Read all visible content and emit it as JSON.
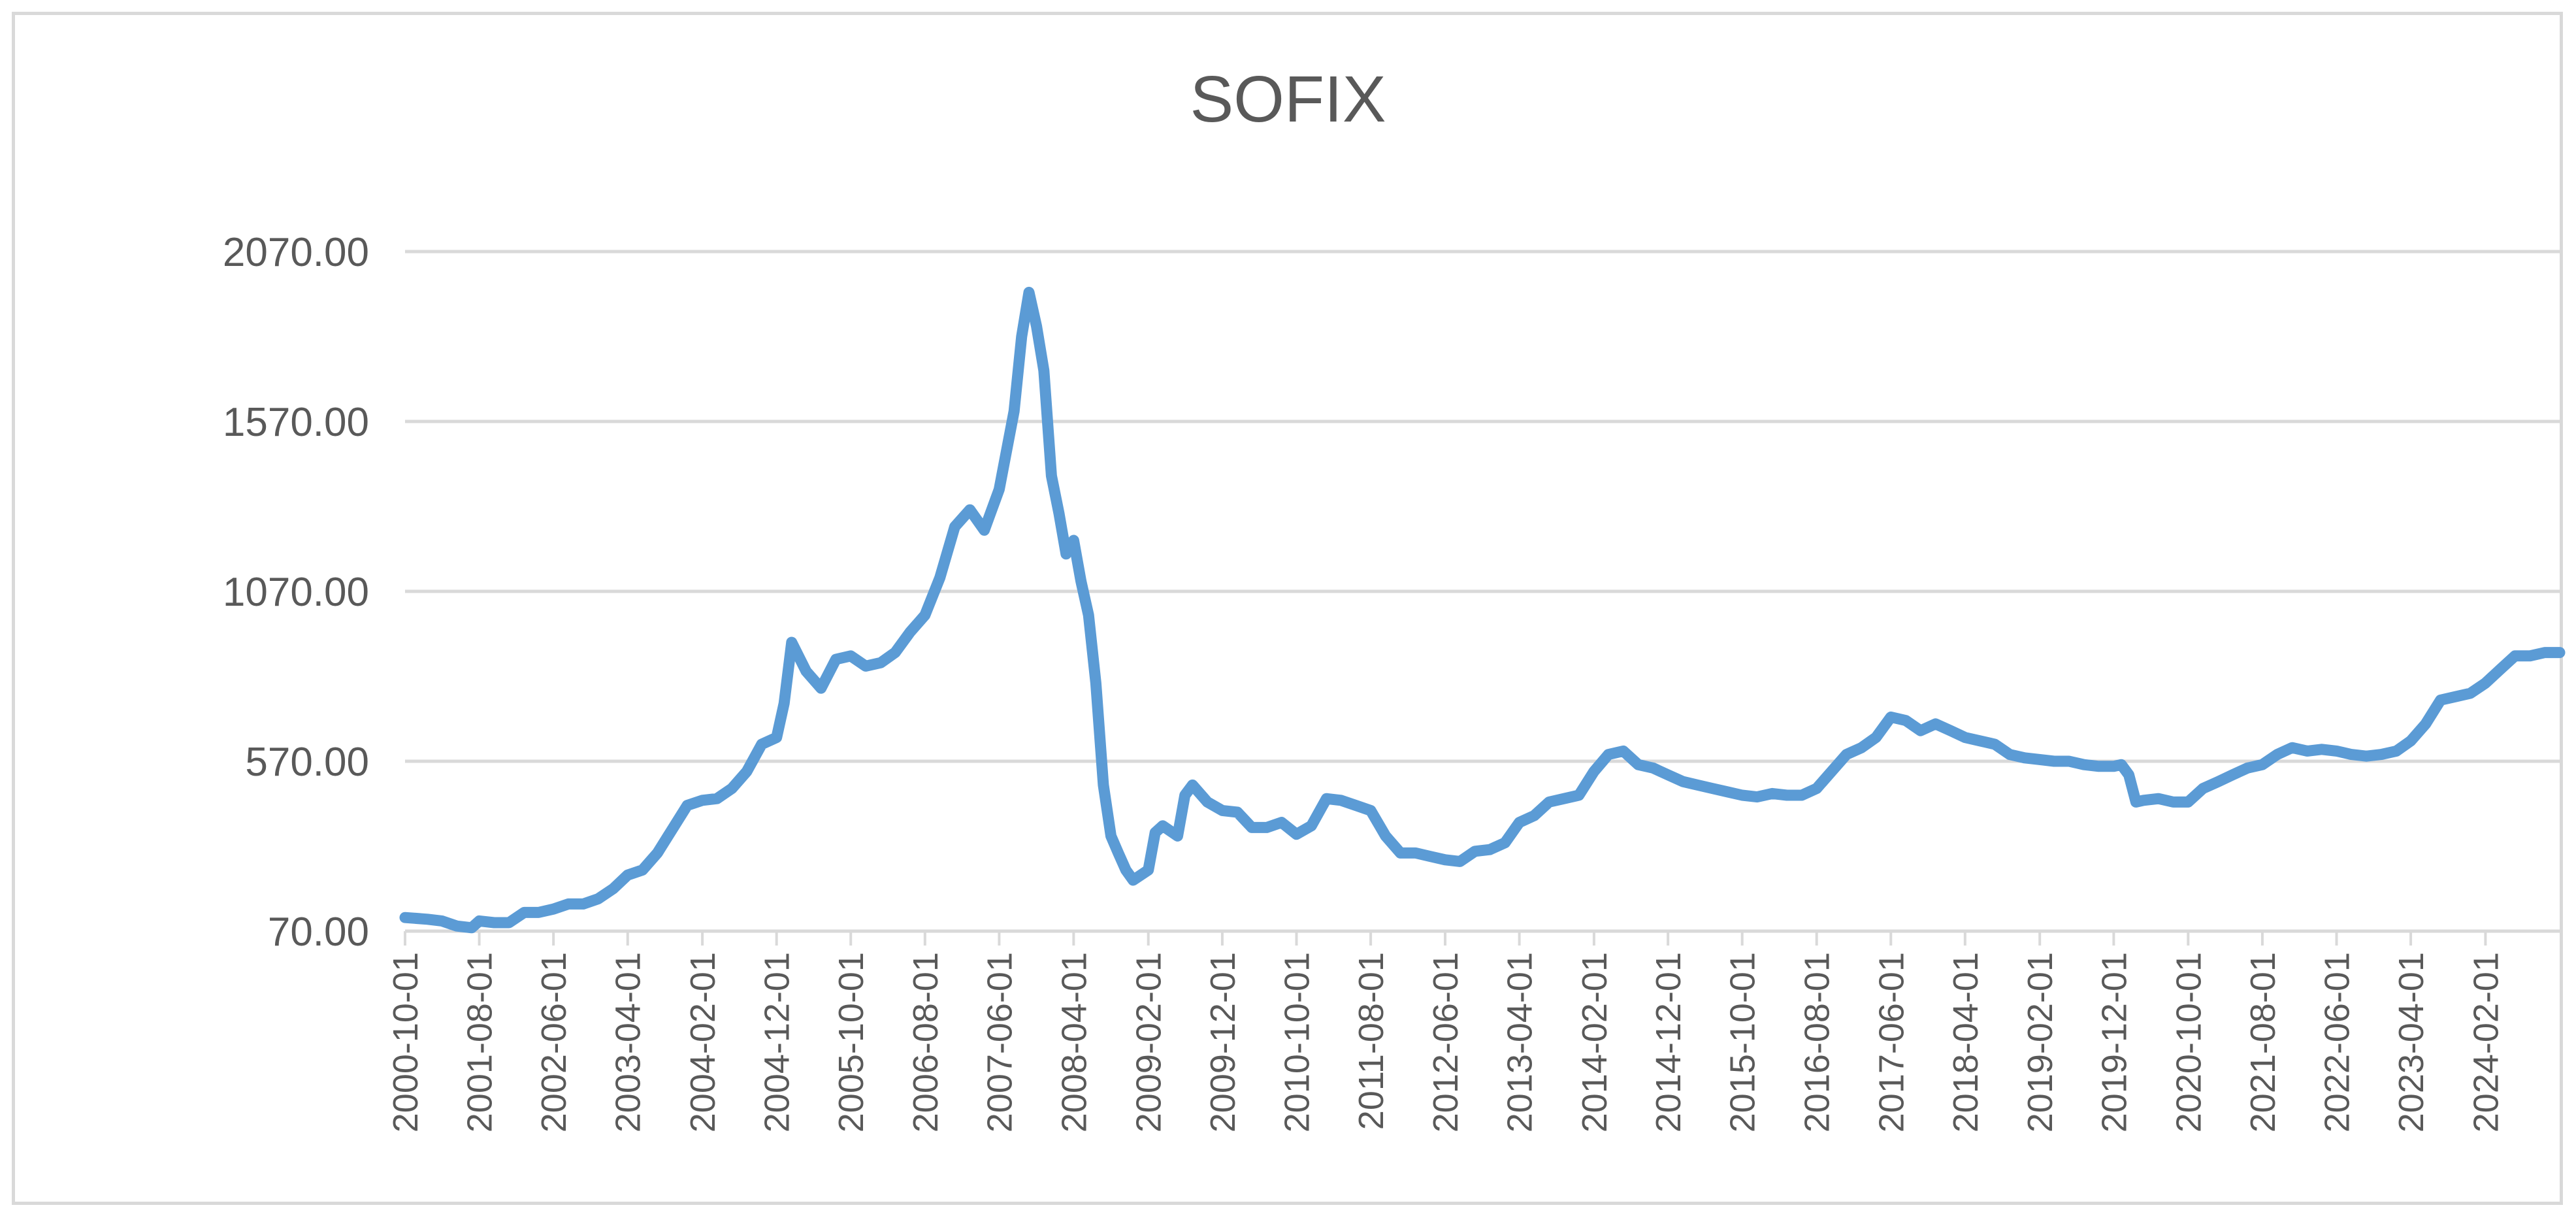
{
  "chart_data": {
    "type": "line",
    "title": "SOFIX",
    "xlabel": "",
    "ylabel": "",
    "ylim": [
      70,
      2070
    ],
    "yticks": [
      "70.00",
      "570.00",
      "1070.00",
      "1570.00",
      "2070.00"
    ],
    "xlim": [
      "2000-10-01",
      "2024-12-01"
    ],
    "xticks": [
      "2000-10-01",
      "2001-08-01",
      "2002-06-01",
      "2003-04-01",
      "2004-02-01",
      "2004-12-01",
      "2005-10-01",
      "2006-08-01",
      "2007-06-01",
      "2008-04-01",
      "2009-02-01",
      "2009-12-01",
      "2010-10-01",
      "2011-08-01",
      "2012-06-01",
      "2013-04-01",
      "2014-02-01",
      "2014-12-01",
      "2015-10-01",
      "2016-08-01",
      "2017-06-01",
      "2018-04-01",
      "2019-02-01",
      "2019-12-01",
      "2020-10-01",
      "2021-08-01",
      "2022-06-01",
      "2023-04-01",
      "2024-02-01"
    ],
    "grid": true,
    "legend": "none",
    "color": "#5b9bd5",
    "series": [
      {
        "points": [
          [
            "2000-10-01",
            110
          ],
          [
            "2001-01-01",
            105
          ],
          [
            "2001-03-01",
            100
          ],
          [
            "2001-05-01",
            85
          ],
          [
            "2001-07-01",
            80
          ],
          [
            "2001-08-01",
            100
          ],
          [
            "2001-10-01",
            95
          ],
          [
            "2001-12-01",
            95
          ],
          [
            "2002-02-01",
            125
          ],
          [
            "2002-04-01",
            125
          ],
          [
            "2002-06-01",
            135
          ],
          [
            "2002-08-01",
            150
          ],
          [
            "2002-10-01",
            150
          ],
          [
            "2002-12-01",
            165
          ],
          [
            "2003-02-01",
            195
          ],
          [
            "2003-04-01",
            235
          ],
          [
            "2003-06-01",
            250
          ],
          [
            "2003-08-01",
            300
          ],
          [
            "2003-10-01",
            370
          ],
          [
            "2003-12-01",
            440
          ],
          [
            "2004-02-01",
            455
          ],
          [
            "2004-04-01",
            460
          ],
          [
            "2004-06-01",
            490
          ],
          [
            "2004-08-01",
            540
          ],
          [
            "2004-10-01",
            620
          ],
          [
            "2004-12-01",
            640
          ],
          [
            "2005-01-01",
            740
          ],
          [
            "2005-02-01",
            920
          ],
          [
            "2005-04-01",
            835
          ],
          [
            "2005-06-01",
            785
          ],
          [
            "2005-08-01",
            870
          ],
          [
            "2005-10-01",
            880
          ],
          [
            "2005-12-01",
            850
          ],
          [
            "2006-02-01",
            860
          ],
          [
            "2006-04-01",
            890
          ],
          [
            "2006-06-01",
            950
          ],
          [
            "2006-08-01",
            1000
          ],
          [
            "2006-10-01",
            1110
          ],
          [
            "2006-12-01",
            1260
          ],
          [
            "2007-02-01",
            1310
          ],
          [
            "2007-04-01",
            1250
          ],
          [
            "2007-06-01",
            1370
          ],
          [
            "2007-08-01",
            1600
          ],
          [
            "2007-09-01",
            1820
          ],
          [
            "2007-10-01",
            1950
          ],
          [
            "2007-11-01",
            1850
          ],
          [
            "2007-12-01",
            1720
          ],
          [
            "2008-01-01",
            1410
          ],
          [
            "2008-02-01",
            1300
          ],
          [
            "2008-03-01",
            1180
          ],
          [
            "2008-04-01",
            1220
          ],
          [
            "2008-05-01",
            1100
          ],
          [
            "2008-06-01",
            1000
          ],
          [
            "2008-07-01",
            800
          ],
          [
            "2008-08-01",
            500
          ],
          [
            "2008-09-01",
            350
          ],
          [
            "2008-10-01",
            300
          ],
          [
            "2008-11-01",
            250
          ],
          [
            "2008-12-01",
            220
          ],
          [
            "2009-02-01",
            250
          ],
          [
            "2009-03-01",
            360
          ],
          [
            "2009-04-01",
            380
          ],
          [
            "2009-06-01",
            350
          ],
          [
            "2009-07-01",
            470
          ],
          [
            "2009-08-01",
            500
          ],
          [
            "2009-10-01",
            450
          ],
          [
            "2009-12-01",
            425
          ],
          [
            "2010-02-01",
            420
          ],
          [
            "2010-04-01",
            375
          ],
          [
            "2010-06-01",
            375
          ],
          [
            "2010-08-01",
            390
          ],
          [
            "2010-10-01",
            355
          ],
          [
            "2010-12-01",
            380
          ],
          [
            "2011-02-01",
            460
          ],
          [
            "2011-04-01",
            455
          ],
          [
            "2011-06-01",
            440
          ],
          [
            "2011-08-01",
            425
          ],
          [
            "2011-10-01",
            350
          ],
          [
            "2011-12-01",
            300
          ],
          [
            "2012-02-01",
            300
          ],
          [
            "2012-04-01",
            290
          ],
          [
            "2012-06-01",
            280
          ],
          [
            "2012-08-01",
            275
          ],
          [
            "2012-10-01",
            305
          ],
          [
            "2012-12-01",
            310
          ],
          [
            "2013-02-01",
            330
          ],
          [
            "2013-04-01",
            390
          ],
          [
            "2013-06-01",
            410
          ],
          [
            "2013-08-01",
            450
          ],
          [
            "2013-10-01",
            460
          ],
          [
            "2013-12-01",
            470
          ],
          [
            "2014-02-01",
            540
          ],
          [
            "2014-04-01",
            590
          ],
          [
            "2014-06-01",
            600
          ],
          [
            "2014-08-01",
            560
          ],
          [
            "2014-10-01",
            550
          ],
          [
            "2014-12-01",
            530
          ],
          [
            "2015-02-01",
            510
          ],
          [
            "2015-04-01",
            500
          ],
          [
            "2015-06-01",
            490
          ],
          [
            "2015-08-01",
            480
          ],
          [
            "2015-10-01",
            470
          ],
          [
            "2015-12-01",
            465
          ],
          [
            "2016-02-01",
            475
          ],
          [
            "2016-04-01",
            470
          ],
          [
            "2016-06-01",
            470
          ],
          [
            "2016-08-01",
            490
          ],
          [
            "2016-10-01",
            540
          ],
          [
            "2016-12-01",
            590
          ],
          [
            "2017-02-01",
            610
          ],
          [
            "2017-04-01",
            640
          ],
          [
            "2017-06-01",
            700
          ],
          [
            "2017-08-01",
            690
          ],
          [
            "2017-10-01",
            660
          ],
          [
            "2017-12-01",
            680
          ],
          [
            "2018-02-01",
            660
          ],
          [
            "2018-04-01",
            640
          ],
          [
            "2018-06-01",
            630
          ],
          [
            "2018-08-01",
            620
          ],
          [
            "2018-10-01",
            590
          ],
          [
            "2018-12-01",
            580
          ],
          [
            "2019-02-01",
            575
          ],
          [
            "2019-04-01",
            570
          ],
          [
            "2019-06-01",
            570
          ],
          [
            "2019-08-01",
            560
          ],
          [
            "2019-10-01",
            555
          ],
          [
            "2019-12-01",
            555
          ],
          [
            "2020-01-01",
            560
          ],
          [
            "2020-02-01",
            530
          ],
          [
            "2020-03-01",
            450
          ],
          [
            "2020-04-01",
            455
          ],
          [
            "2020-06-01",
            460
          ],
          [
            "2020-08-01",
            450
          ],
          [
            "2020-10-01",
            450
          ],
          [
            "2020-12-01",
            490
          ],
          [
            "2021-02-01",
            510
          ],
          [
            "2021-04-01",
            530
          ],
          [
            "2021-06-01",
            550
          ],
          [
            "2021-08-01",
            560
          ],
          [
            "2021-10-01",
            590
          ],
          [
            "2021-12-01",
            610
          ],
          [
            "2022-02-01",
            600
          ],
          [
            "2022-04-01",
            605
          ],
          [
            "2022-06-01",
            600
          ],
          [
            "2022-08-01",
            590
          ],
          [
            "2022-10-01",
            585
          ],
          [
            "2022-12-01",
            590
          ],
          [
            "2023-02-01",
            600
          ],
          [
            "2023-04-01",
            630
          ],
          [
            "2023-06-01",
            680
          ],
          [
            "2023-08-01",
            750
          ],
          [
            "2023-10-01",
            760
          ],
          [
            "2023-12-01",
            770
          ],
          [
            "2024-02-01",
            800
          ],
          [
            "2024-04-01",
            840
          ],
          [
            "2024-06-01",
            880
          ],
          [
            "2024-08-01",
            880
          ],
          [
            "2024-10-01",
            890
          ],
          [
            "2024-12-01",
            890
          ]
        ]
      }
    ]
  }
}
